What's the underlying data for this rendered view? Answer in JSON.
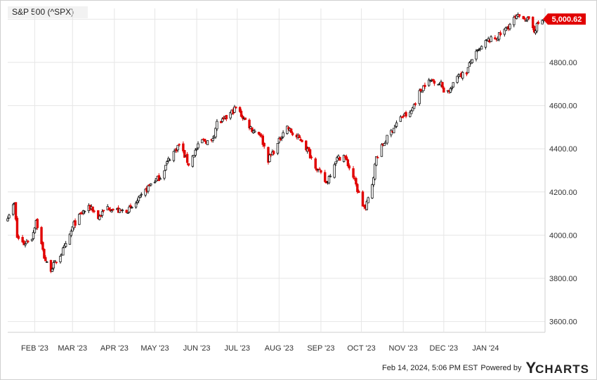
{
  "colors": {
    "up_candle": "#111111",
    "down_candle": "#e10000",
    "last_price_tag": "#e10000",
    "grid": "#e6e6e6"
  },
  "footer": {
    "timestamp": "Feb 14, 2024, 5:06 PM EST",
    "powered": "Powered by",
    "logo_y": "Y",
    "logo_word": "CHARTS"
  },
  "chart_data": {
    "type": "candlestick",
    "title": "S&P 500 (^SPX)",
    "last_price_label": "5,000.62",
    "last_price": 5000.62,
    "ylim": [
      3550,
      5050
    ],
    "y_ticks": [
      3600,
      3800,
      4000,
      4200,
      4400,
      4600,
      4800,
      5000
    ],
    "y_tick_labels": [
      "3600.00",
      "3800.00",
      "4000.00",
      "4200.00",
      "4400.00",
      "4600.00",
      "4800.00",
      "5000.00"
    ],
    "x_start": "2023-01-12",
    "x_end": "2024-02-14",
    "x_ticks": [
      "2023-02-01",
      "2023-03-01",
      "2023-04-01",
      "2023-05-01",
      "2023-06-01",
      "2023-07-01",
      "2023-08-01",
      "2023-09-01",
      "2023-10-01",
      "2023-11-01",
      "2023-12-01",
      "2024-01-01"
    ],
    "x_tick_labels": [
      "FEB '23",
      "MAR '23",
      "APR '23",
      "MAY '23",
      "JUN '23",
      "JUL '23",
      "AUG '23",
      "SEP '23",
      "OCT '23",
      "NOV '23",
      "DEC '23",
      "JAN '24"
    ],
    "grid": true,
    "anchors": [
      [
        "2023-01-12",
        4090
      ],
      [
        "2023-01-17",
        4145
      ],
      [
        "2023-01-19",
        3990
      ],
      [
        "2023-01-24",
        3960
      ],
      [
        "2023-01-30",
        3990
      ],
      [
        "2023-02-02",
        4070
      ],
      [
        "2023-02-08",
        3900
      ],
      [
        "2023-02-12",
        3835
      ],
      [
        "2023-02-16",
        3870
      ],
      [
        "2023-02-24",
        3950
      ],
      [
        "2023-03-02",
        4050
      ],
      [
        "2023-03-09",
        4110
      ],
      [
        "2023-03-15",
        4130
      ],
      [
        "2023-03-20",
        4080
      ],
      [
        "2023-03-27",
        4130
      ],
      [
        "2023-04-05",
        4110
      ],
      [
        "2023-04-13",
        4120
      ],
      [
        "2023-04-20",
        4170
      ],
      [
        "2023-04-28",
        4240
      ],
      [
        "2023-05-05",
        4270
      ],
      [
        "2023-05-12",
        4360
      ],
      [
        "2023-05-19",
        4420
      ],
      [
        "2023-05-26",
        4330
      ],
      [
        "2023-05-31",
        4390
      ],
      [
        "2023-06-05",
        4440
      ],
      [
        "2023-06-12",
        4430
      ],
      [
        "2023-06-16",
        4520
      ],
      [
        "2023-06-21",
        4530
      ],
      [
        "2023-06-27",
        4570
      ],
      [
        "2023-06-30",
        4590
      ],
      [
        "2023-07-06",
        4540
      ],
      [
        "2023-07-12",
        4490
      ],
      [
        "2023-07-18",
        4470
      ],
      [
        "2023-07-24",
        4350
      ],
      [
        "2023-07-31",
        4420
      ],
      [
        "2023-08-06",
        4510
      ],
      [
        "2023-08-12",
        4460
      ],
      [
        "2023-08-18",
        4440
      ],
      [
        "2023-08-24",
        4370
      ],
      [
        "2023-08-30",
        4300
      ],
      [
        "2023-09-05",
        4240
      ],
      [
        "2023-09-12",
        4350
      ],
      [
        "2023-09-18",
        4370
      ],
      [
        "2023-09-25",
        4270
      ],
      [
        "2023-10-01",
        4150
      ],
      [
        "2023-10-04",
        4120
      ],
      [
        "2023-10-09",
        4240
      ],
      [
        "2023-10-12",
        4360
      ],
      [
        "2023-10-18",
        4430
      ],
      [
        "2023-10-25",
        4500
      ],
      [
        "2023-10-31",
        4550
      ],
      [
        "2023-11-06",
        4560
      ],
      [
        "2023-11-12",
        4650
      ],
      [
        "2023-11-17",
        4700
      ],
      [
        "2023-11-23",
        4720
      ],
      [
        "2023-11-29",
        4700
      ],
      [
        "2023-12-02",
        4660
      ],
      [
        "2023-12-07",
        4680
      ],
      [
        "2023-12-12",
        4750
      ],
      [
        "2023-12-17",
        4740
      ],
      [
        "2023-12-22",
        4820
      ],
      [
        "2023-12-28",
        4860
      ],
      [
        "2024-01-02",
        4900
      ],
      [
        "2024-01-08",
        4910
      ],
      [
        "2024-01-12",
        4930
      ],
      [
        "2024-01-17",
        4960
      ],
      [
        "2024-01-22",
        5000
      ],
      [
        "2024-01-28",
        5020
      ],
      [
        "2024-02-02",
        4990
      ],
      [
        "2024-02-06",
        4950
      ],
      [
        "2024-02-10",
        4990
      ],
      [
        "2024-02-14",
        5000.62
      ]
    ]
  }
}
